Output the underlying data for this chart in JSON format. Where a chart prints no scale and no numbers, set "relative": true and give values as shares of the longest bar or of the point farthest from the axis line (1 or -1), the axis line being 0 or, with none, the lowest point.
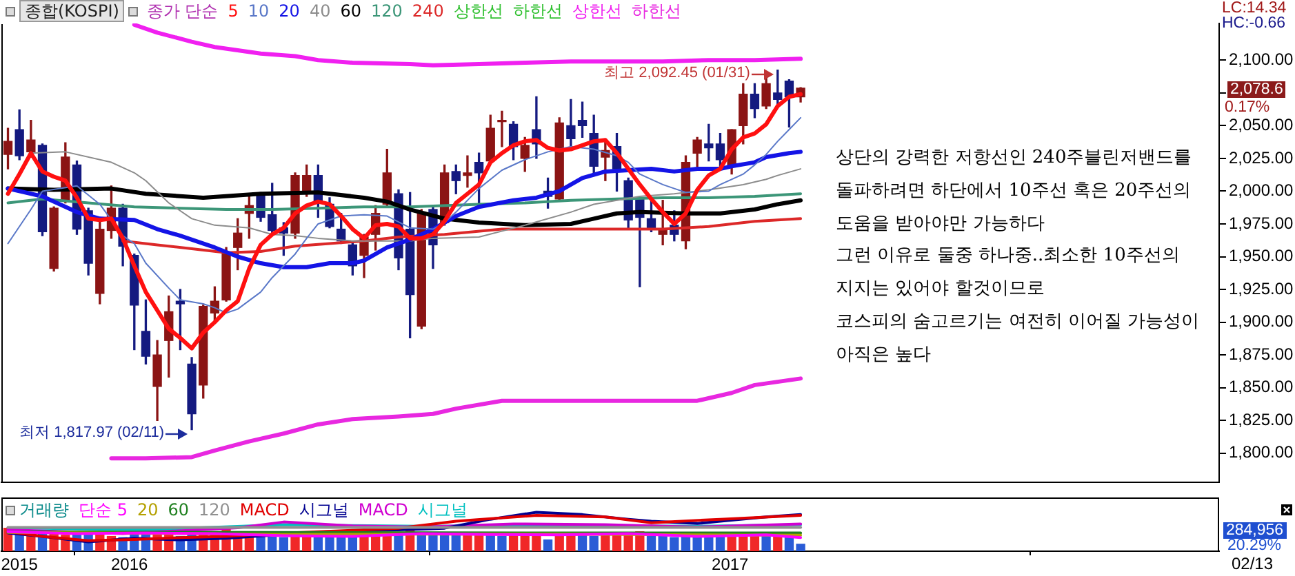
{
  "chart_data": [
    {
      "type": "candlestick",
      "title": "종합(KOSPI)",
      "legend_title": "종가 단순",
      "legend": "top left",
      "tick_labels": "y",
      "x": [
        "2015-10-19",
        "2015-10-26",
        "2015-11-02",
        "2015-11-09",
        "2015-11-16",
        "2015-11-23",
        "2015-11-30",
        "2015-12-07",
        "2015-12-14",
        "2015-12-21",
        "2015-12-28",
        "2016-01-04",
        "2016-01-11",
        "2016-01-18",
        "2016-01-25",
        "2016-02-01",
        "2016-02-08",
        "2016-02-15",
        "2016-02-22",
        "2016-02-29",
        "2016-03-07",
        "2016-03-14",
        "2016-03-21",
        "2016-03-28",
        "2016-04-04",
        "2016-04-11",
        "2016-04-18",
        "2016-04-25",
        "2016-05-02",
        "2016-05-09",
        "2016-05-16",
        "2016-05-23",
        "2016-05-30",
        "2016-06-06",
        "2016-06-13",
        "2016-06-20",
        "2016-06-27",
        "2016-07-04",
        "2016-07-11",
        "2016-07-18",
        "2016-07-25",
        "2016-08-01",
        "2016-08-08",
        "2016-08-15",
        "2016-08-22",
        "2016-08-29",
        "2016-09-05",
        "2016-09-12",
        "2016-09-19",
        "2016-09-26",
        "2016-10-03",
        "2016-10-10",
        "2016-10-17",
        "2016-10-24",
        "2016-10-31",
        "2016-11-07",
        "2016-11-14",
        "2016-11-21",
        "2016-11-28",
        "2016-12-05",
        "2016-12-12",
        "2016-12-19",
        "2016-12-26",
        "2017-01-02",
        "2017-01-09",
        "2017-01-16",
        "2017-01-23",
        "2017-01-30",
        "2017-02-06",
        "2017-02-13"
      ],
      "ohlc": [
        [
          2028,
          2048,
          2017,
          2038
        ],
        [
          2047,
          2062,
          2024,
          2027
        ],
        [
          2030,
          2054,
          2027,
          2039
        ],
        [
          2035,
          2036,
          1966,
          1969
        ],
        [
          1941,
          1988,
          1939,
          1987
        ],
        [
          1993,
          2037,
          1991,
          2026
        ],
        [
          2020,
          2023,
          1967,
          1971
        ],
        [
          1985,
          1987,
          1936,
          1945
        ],
        [
          1922,
          1979,
          1914,
          1971
        ],
        [
          1970,
          2004,
          1964,
          1987
        ],
        [
          1987,
          1990,
          1943,
          1958
        ],
        [
          1951,
          1952,
          1879,
          1913
        ],
        [
          1893,
          1917,
          1868,
          1874
        ],
        [
          1851,
          1886,
          1825,
          1875
        ],
        [
          1886,
          1920,
          1858,
          1908
        ],
        [
          1916,
          1925,
          1879,
          1914
        ],
        [
          1868,
          1873,
          1817.97,
          1830
        ],
        [
          1852,
          1913,
          1842,
          1912
        ],
        [
          1907,
          1927,
          1900,
          1916
        ],
        [
          1917,
          1957,
          1916,
          1953
        ],
        [
          1957,
          1979,
          1940,
          1968
        ],
        [
          1983,
          1998,
          1964,
          1989
        ],
        [
          1998,
          1999,
          1977,
          1980
        ],
        [
          1982,
          2006,
          1967,
          1970
        ],
        [
          1972,
          1976,
          1951,
          1968
        ],
        [
          1968,
          2014,
          1964,
          2012
        ],
        [
          1998,
          2020,
          1996,
          2012
        ],
        [
          2012,
          2020,
          1980,
          1991
        ],
        [
          1990,
          1995,
          1972,
          1973
        ],
        [
          1971,
          1983,
          1960,
          1962
        ],
        [
          1959,
          1961,
          1936,
          1943
        ],
        [
          1951,
          1967,
          1934,
          1965
        ],
        [
          1967,
          1989,
          1955,
          1983
        ],
        [
          1990,
          2032,
          1989,
          2014
        ],
        [
          1998,
          2001,
          1940,
          1949
        ],
        [
          1971,
          1999,
          1888,
          1921
        ],
        [
          1897,
          1986,
          1895,
          1984
        ],
        [
          1986,
          1988,
          1941,
          1959
        ],
        [
          1976,
          2020,
          1974,
          2014
        ],
        [
          2015,
          2020,
          1998,
          2008
        ],
        [
          2012,
          2027,
          2003,
          2014
        ],
        [
          2022,
          2029,
          1990,
          2014
        ],
        [
          2023,
          2058,
          2022,
          2048
        ],
        [
          2053,
          2061,
          2034,
          2054
        ],
        [
          2051,
          2053,
          2024,
          2034
        ],
        [
          2025,
          2041,
          2015,
          2035
        ],
        [
          2047,
          2072,
          2025,
          2036
        ],
        [
          2000,
          2010,
          1987,
          1996
        ],
        [
          1994,
          2056,
          1993,
          2052
        ],
        [
          2050,
          2070,
          2032,
          2040
        ],
        [
          2054,
          2068,
          2041,
          2050
        ],
        [
          2044,
          2058,
          2013,
          2019
        ],
        [
          2026,
          2039,
          2008,
          2031
        ],
        [
          2034,
          2044,
          2000,
          2017
        ],
        [
          2008,
          2010,
          1971,
          1978
        ],
        [
          1995,
          1995,
          1927,
          1980
        ],
        [
          1979,
          1993,
          1969,
          1971
        ],
        [
          1967,
          1993,
          1959,
          1971
        ],
        [
          1974,
          1985,
          1962,
          1967
        ],
        [
          1962,
          2027,
          1956,
          2022
        ],
        [
          2029,
          2041,
          2019,
          2039
        ],
        [
          2036,
          2051,
          2023,
          2033
        ],
        [
          2036,
          2044,
          2018,
          2024
        ],
        [
          2019,
          2047,
          2013,
          2047
        ],
        [
          2050,
          2082,
          2036,
          2074
        ],
        [
          2074,
          2082,
          2056,
          2063
        ],
        [
          2065,
          2088,
          2063,
          2082
        ],
        [
          2075,
          2092.45,
          2064,
          2070
        ],
        [
          2084,
          2085,
          2049,
          2072
        ],
        [
          2072,
          2079,
          2068,
          2078.6
        ]
      ],
      "colors": [
        "#8b1414",
        "#141a80",
        "#8b1414",
        "#141a80",
        "#8b1414",
        "#8b1414",
        "#141a80",
        "#141a80",
        "#8b1414",
        "#8b1414",
        "#141a80",
        "#141a80",
        "#141a80",
        "#8b1414",
        "#8b1414",
        "#141a80",
        "#141a80",
        "#8b1414",
        "#8b1414",
        "#8b1414",
        "#8b1414",
        "#8b1414",
        "#141a80",
        "#141a80",
        "#141a80",
        "#8b1414",
        "#8b1414",
        "#141a80",
        "#141a80",
        "#141a80",
        "#141a80",
        "#8b1414",
        "#8b1414",
        "#8b1414",
        "#141a80",
        "#141a80",
        "#8b1414",
        "#141a80",
        "#8b1414",
        "#141a80",
        "#8b1414",
        "#141a80",
        "#8b1414",
        "#8b1414",
        "#141a80",
        "#8b1414",
        "#141a80",
        "#141a80",
        "#8b1414",
        "#141a80",
        "#141a80",
        "#141a80",
        "#8b1414",
        "#141a80",
        "#141a80",
        "#141a80",
        "#141a80",
        "#8b1414",
        "#141a80",
        "#8b1414",
        "#8b1414",
        "#141a80",
        "#141a80",
        "#8b1414",
        "#8b1414",
        "#141a80",
        "#8b1414",
        "#141a80",
        "#141a80",
        "#8b1414"
      ],
      "series": [
        {
          "name": "5",
          "type": "line",
          "color": "#ff1010",
          "values": [
            1998,
            2013,
            2029,
            2015,
            2011,
            2008,
            1995,
            1979,
            1978,
            1979,
            1964,
            1943,
            1923,
            1909,
            1895,
            1888,
            1880,
            1892,
            1900,
            1909,
            1916,
            1941,
            1959,
            1967,
            1972,
            1983,
            1989,
            1992,
            1990,
            1981,
            1971,
            1964,
            1974,
            1975,
            1973,
            1964,
            1964,
            1967,
            1977,
            1991,
            1998,
            2005,
            2022,
            2029,
            2035,
            2038,
            2039,
            2033,
            2031,
            2032,
            2035,
            2038,
            2039,
            2029,
            2017,
            2005,
            1994,
            1984,
            1975,
            1983,
            2001,
            2012,
            2017,
            2032,
            2041,
            2044,
            2051,
            2065,
            2072,
            2074
          ]
        },
        {
          "name": "10",
          "type": "line",
          "color": "#5a78c8",
          "x": [
            "2015-10-19",
            "2015-11-02",
            "2015-11-09",
            "2015-11-30",
            "2015-12-14",
            "2015-12-28",
            "2016-01-04",
            "2016-01-11",
            "2016-01-25",
            "2016-02-01",
            "2016-02-15",
            "2016-02-22",
            "2016-02-29",
            "2016-03-07",
            "2016-03-21",
            "2016-03-28",
            "2016-04-11",
            "2016-04-18",
            "2016-04-25",
            "2016-05-09",
            "2016-05-23",
            "2016-06-06",
            "2016-06-20",
            "2016-07-04",
            "2016-07-11",
            "2016-07-18",
            "2016-08-01",
            "2016-08-15",
            "2016-08-29",
            "2016-09-05",
            "2016-09-12",
            "2016-09-26",
            "2016-10-10",
            "2016-10-24",
            "2016-10-31",
            "2016-11-07",
            "2016-11-21",
            "2016-11-28",
            "2016-12-05",
            "2016-12-19",
            "2016-12-26",
            "2017-01-09",
            "2017-01-16",
            "2017-01-23",
            "2017-01-30",
            "2017-02-06",
            "2017-02-13"
          ],
          "values": [
            1960,
            1986,
            2000,
            2004,
            1990,
            1966,
            1960,
            1945,
            1926,
            1917,
            1914,
            1911,
            1907,
            1910,
            1923,
            1934,
            1952,
            1964,
            1975,
            1981,
            1982,
            1981,
            1972,
            1971,
            1976,
            1984,
            2002,
            2016,
            2024,
            2027,
            2030,
            2034,
            2032,
            2027,
            2022,
            2013,
            2005,
            2002,
            1999,
            2000,
            2005,
            2013,
            2020,
            2028,
            2038,
            2047,
            2056
          ]
        },
        {
          "name": "20",
          "type": "line",
          "color": "#1414e6",
          "x": [
            "2015-10-19",
            "2015-11-09",
            "2015-11-30",
            "2015-12-14",
            "2016-01-04",
            "2016-01-18",
            "2016-02-01",
            "2016-02-22",
            "2016-03-07",
            "2016-03-21",
            "2016-04-04",
            "2016-04-18",
            "2016-05-02",
            "2016-05-16",
            "2016-05-23",
            "2016-06-06",
            "2016-06-20",
            "2016-07-04",
            "2016-07-18",
            "2016-08-01",
            "2016-08-22",
            "2016-09-05",
            "2016-09-19",
            "2016-09-26",
            "2016-10-03",
            "2016-10-17",
            "2016-10-31",
            "2016-11-14",
            "2016-11-28",
            "2016-12-12",
            "2016-12-26",
            "2017-01-02",
            "2017-01-16",
            "2017-01-23",
            "2017-02-06",
            "2017-02-13"
          ],
          "values": [
            2002,
            1996,
            1984,
            1979,
            1978,
            1971,
            1966,
            1957,
            1950,
            1945,
            1942,
            1942,
            1945,
            1945,
            1947,
            1957,
            1963,
            1971,
            1981,
            1988,
            1993,
            1995,
            2000,
            2005,
            2010,
            2015,
            2016,
            2017,
            2015,
            2017,
            2017,
            2019,
            2022,
            2026,
            2029,
            2030
          ]
        },
        {
          "name": "40",
          "type": "line",
          "color": "#8c8c8c",
          "x": [
            "2015-11-02",
            "2015-11-23",
            "2015-12-21",
            "2016-01-04",
            "2016-01-11",
            "2016-01-25",
            "2016-02-08",
            "2016-02-22",
            "2016-03-14",
            "2016-03-28",
            "2016-04-11",
            "2016-04-25",
            "2016-05-16",
            "2016-05-30",
            "2016-06-20",
            "2016-07-04",
            "2016-08-01",
            "2016-08-29",
            "2016-09-26",
            "2016-10-10",
            "2016-10-24",
            "2016-11-07",
            "2016-11-28",
            "2016-12-19",
            "2017-01-09",
            "2017-01-23",
            "2017-01-30",
            "2017-02-13"
          ],
          "values": [
            2029,
            2030,
            2022,
            2014,
            2008,
            1991,
            1979,
            1974,
            1972,
            1967,
            1966,
            1964,
            1962,
            1962,
            1962,
            1964,
            1965,
            1974,
            1984,
            1990,
            1993,
            1996,
            1998,
            2001,
            2005,
            2009,
            2012,
            2017
          ]
        },
        {
          "name": "60",
          "type": "line",
          "color": "#000000",
          "x": [
            "2015-10-19",
            "2015-11-16",
            "2015-12-21",
            "2016-01-11",
            "2016-02-15",
            "2016-03-21",
            "2016-04-25",
            "2016-05-23",
            "2016-06-06",
            "2016-06-20",
            "2016-07-11",
            "2016-08-01",
            "2016-08-29",
            "2016-09-26",
            "2016-10-10",
            "2016-10-24",
            "2016-11-07",
            "2016-12-05",
            "2016-12-26",
            "2017-01-16",
            "2017-01-30",
            "2017-02-13"
          ],
          "values": [
            2002,
            2001,
            2002,
            1998,
            1995,
            1998,
            1999,
            1995,
            1992,
            1986,
            1979,
            1976,
            1974,
            1975,
            1979,
            1983,
            1984,
            1983,
            1983,
            1986,
            1990,
            1993
          ]
        },
        {
          "name": "120",
          "type": "line",
          "color": "#3c9678",
          "x": [
            "2015-10-19",
            "2015-11-09",
            "2015-12-07",
            "2016-01-04",
            "2016-02-01",
            "2016-02-29",
            "2016-03-28",
            "2016-04-25",
            "2016-05-23",
            "2016-06-20",
            "2016-08-01",
            "2016-08-29",
            "2016-09-26",
            "2016-10-24",
            "2016-11-21",
            "2016-12-19",
            "2017-01-16",
            "2017-02-13"
          ],
          "values": [
            1991,
            1994,
            1991,
            1988,
            1987,
            1986,
            1986,
            1987,
            1988,
            1988,
            1990,
            1991,
            1993,
            1994,
            1995,
            1995,
            1996,
            1998
          ]
        },
        {
          "name": "240",
          "type": "line",
          "color": "#dc2828",
          "x": [
            "2015-12-28",
            "2016-01-18",
            "2016-02-08",
            "2016-02-29",
            "2016-03-21",
            "2016-04-11",
            "2016-05-02",
            "2016-05-23",
            "2016-06-13",
            "2016-07-11",
            "2016-08-15",
            "2016-09-26",
            "2016-10-24",
            "2016-11-21",
            "2016-12-19",
            "2017-01-16",
            "2017-02-13"
          ],
          "values": [
            1962,
            1959,
            1956,
            1953,
            1954,
            1958,
            1960,
            1962,
            1965,
            1967,
            1971,
            1971,
            1971,
            1971,
            1973,
            1977,
            1979
          ]
        },
        {
          "name": "상한선",
          "type": "line",
          "color": "#30c030",
          "values": [
            null,
            null,
            null,
            null,
            null,
            null,
            null,
            null,
            null,
            null,
            null,
            null,
            null,
            null,
            null,
            null,
            null,
            null,
            null,
            null,
            null,
            null,
            null,
            null,
            null,
            null,
            null,
            null,
            null,
            null,
            null,
            null,
            null,
            null,
            null,
            null,
            null,
            null,
            null,
            null,
            null,
            null,
            null,
            null,
            null,
            null,
            null,
            null,
            null,
            null,
            null,
            null,
            null,
            null,
            null,
            null,
            null,
            null,
            null,
            null,
            null,
            null,
            null,
            null,
            null,
            null,
            null,
            null,
            null,
            null
          ]
        },
        {
          "name": "하한선",
          "type": "line",
          "color": "#30c030",
          "values": [
            null,
            null,
            null,
            null,
            null,
            null,
            null,
            null,
            null,
            null,
            null,
            null,
            null,
            null,
            null,
            null,
            null,
            null,
            null,
            null,
            null,
            null,
            null,
            null,
            null,
            null,
            null,
            null,
            null,
            null,
            null,
            null,
            null,
            null,
            null,
            null,
            null,
            null,
            null,
            null,
            null,
            null,
            null,
            null,
            null,
            null,
            null,
            null,
            null,
            null,
            null,
            null,
            null,
            null,
            null,
            null,
            null,
            null,
            null,
            null,
            null,
            null,
            null,
            null,
            null,
            null,
            null,
            null,
            null,
            null
          ]
        },
        {
          "name": "상한선",
          "type": "line",
          "color": "#f020f0",
          "x": [
            "2016-01-04",
            "2016-01-18",
            "2016-02-08",
            "2016-02-22",
            "2016-03-21",
            "2016-04-11",
            "2016-04-25",
            "2016-05-16",
            "2016-06-20",
            "2016-07-04",
            "2016-08-01",
            "2016-08-29",
            "2016-09-26",
            "2016-10-24",
            "2016-11-21",
            "2016-12-19",
            "2017-01-16",
            "2017-02-13"
          ],
          "values": [
            2127,
            2121,
            2114,
            2110,
            2105,
            2103,
            2100,
            2098,
            2097,
            2096,
            2097,
            2098,
            2099,
            2099,
            2099,
            2100,
            2100,
            2101
          ]
        },
        {
          "name": "하한선",
          "type": "line",
          "color": "#e828e0",
          "x": [
            "2015-12-21",
            "2016-01-11",
            "2016-02-08",
            "2016-02-22",
            "2016-03-14",
            "2016-04-04",
            "2016-04-25",
            "2016-05-16",
            "2016-06-13",
            "2016-07-04",
            "2016-07-18",
            "2016-08-15",
            "2016-10-03",
            "2016-11-14",
            "2016-12-12",
            "2017-01-02",
            "2017-01-16",
            "2017-02-13"
          ],
          "values": [
            1796,
            1796,
            1797,
            1802,
            1809,
            1815,
            1822,
            1826,
            1828,
            1830,
            1834,
            1840,
            1840,
            1840,
            1840,
            1846,
            1852,
            1857
          ]
        }
      ],
      "xlim": [
        "2015-10-15",
        "2017-10-26"
      ],
      "ylim": [
        1778,
        2128
      ],
      "yticks": [
        {
          "value": 1800,
          "label": "1,800.00"
        },
        {
          "value": 1825,
          "label": "1,825.00"
        },
        {
          "value": 1850,
          "label": "1,850.00"
        },
        {
          "value": 1875,
          "label": "1,875.00"
        },
        {
          "value": 1900,
          "label": "1,900.00"
        },
        {
          "value": 1925,
          "label": "1,925.00"
        },
        {
          "value": 1950,
          "label": "1,950.00"
        },
        {
          "value": 1975,
          "label": "1,975.00"
        },
        {
          "value": 2000,
          "label": "2,000.00"
        },
        {
          "value": 2025,
          "label": "2,025.00"
        },
        {
          "value": 2050,
          "label": "2,050.00"
        },
        {
          "value": 2075,
          "label": null
        },
        {
          "value": 2100,
          "label": "2,100.00"
        }
      ],
      "annotations": [
        "LC:14.34",
        "HC:-0.66",
        "2,078.6",
        "0.17%",
        {
          "text": "최고 2,092.45 (01/31)",
          "x": "2017-01-30",
          "y": 2092.45
        },
        {
          "text": "최저 1,817.97 (02/11)",
          "x": "2016-02-08",
          "y": 1817.97
        },
        "상단의 강력한 저항선인 240주블린저밴드를\n돌파하려면 하단에서 10주선 혹은 20주선의\n도움을 받아야만 가능하다\n그런 이유로 둘중 하나중..최소한 10주선의\n지지는 있어야 할것이므로\n코스피의 숨고르기는 여전히 이어질 가능성이\n아직은 높다"
      ]
    },
    {
      "type": "bar",
      "title": "거래량",
      "relative": true,
      "legend": "top left",
      "tick_labels": "x",
      "x": [
        "2015-10-19",
        "2015-10-26",
        "2015-11-02",
        "2015-11-09",
        "2015-11-16",
        "2015-11-23",
        "2015-11-30",
        "2015-12-07",
        "2015-12-14",
        "2015-12-21",
        "2015-12-28",
        "2016-01-04",
        "2016-01-11",
        "2016-01-18",
        "2016-01-25",
        "2016-02-01",
        "2016-02-08",
        "2016-02-15",
        "2016-02-22",
        "2016-02-29",
        "2016-03-07",
        "2016-03-14",
        "2016-03-21",
        "2016-03-28",
        "2016-04-04",
        "2016-04-11",
        "2016-04-18",
        "2016-04-25",
        "2016-05-02",
        "2016-05-09",
        "2016-05-16",
        "2016-05-23",
        "2016-05-30",
        "2016-06-06",
        "2016-06-13",
        "2016-06-20",
        "2016-06-27",
        "2016-07-04",
        "2016-07-11",
        "2016-07-18",
        "2016-07-25",
        "2016-08-01",
        "2016-08-08",
        "2016-08-15",
        "2016-08-22",
        "2016-08-29",
        "2016-09-05",
        "2016-09-12",
        "2016-09-19",
        "2016-09-26",
        "2016-10-03",
        "2016-10-10",
        "2016-10-17",
        "2016-10-24",
        "2016-10-31",
        "2016-11-07",
        "2016-11-14",
        "2016-11-21",
        "2016-11-28",
        "2016-12-05",
        "2016-12-12",
        "2016-12-19",
        "2016-12-26",
        "2017-01-02",
        "2017-01-09",
        "2017-01-16",
        "2017-01-23",
        "2017-01-30",
        "2017-02-06",
        "2017-02-13"
      ],
      "series": [
        {
          "type": "bar",
          "colors": [
            "#f02828",
            "#2a5cd6",
            "#f02828",
            "#2a5cd6",
            "#f02828",
            "#f02828",
            "#2a5cd6",
            "#2a5cd6",
            "#f02828",
            "#f02828",
            "#2a5cd6",
            "#2a5cd6",
            "#2a5cd6",
            "#f02828",
            "#f02828",
            "#2a5cd6",
            "#2a5cd6",
            "#f02828",
            "#f02828",
            "#f02828",
            "#f02828",
            "#f02828",
            "#2a5cd6",
            "#2a5cd6",
            "#2a5cd6",
            "#f02828",
            "#f02828",
            "#2a5cd6",
            "#2a5cd6",
            "#2a5cd6",
            "#2a5cd6",
            "#f02828",
            "#f02828",
            "#f02828",
            "#2a5cd6",
            "#f02828",
            "#2a5cd6",
            "#2a5cd6",
            "#2a5cd6",
            "#2a5cd6",
            "#f02828",
            "#f02828",
            "#2a5cd6",
            "#2a5cd6",
            "#f02828",
            "#f02828",
            "#f02828",
            "#2a5cd6",
            "#f02828",
            "#f02828",
            "#2a5cd6",
            "#2a5cd6",
            "#f02828",
            "#f02828",
            "#f02828",
            "#f02828",
            "#2a5cd6",
            "#2a5cd6",
            "#2a5cd6",
            "#2a5cd6",
            "#2a5cd6",
            "#2a5cd6",
            "#2a5cd6",
            "#f02828",
            "#f02828",
            "#f02828",
            "#2a5cd6",
            "#f02828",
            "#2a5cd6",
            "#2a5cd6"
          ],
          "values": [
            0.59,
            0.47,
            0.44,
            0.47,
            0.44,
            0.41,
            0.44,
            0.47,
            0.44,
            0.38,
            0.35,
            0.47,
            0.5,
            0.47,
            0.44,
            0.38,
            0.5,
            0.47,
            0.44,
            0.58,
            0.44,
            0.41,
            0.38,
            0.41,
            0.35,
            0.44,
            0.47,
            0.41,
            0.38,
            0.35,
            0.38,
            0.38,
            0.41,
            0.44,
            0.47,
            0.53,
            0.44,
            0.47,
            0.44,
            0.41,
            0.44,
            0.47,
            0.41,
            0.38,
            0.44,
            0.47,
            0.44,
            0.29,
            0.47,
            0.44,
            0.41,
            0.38,
            0.44,
            0.44,
            0.47,
            0.5,
            0.38,
            0.38,
            0.35,
            0.38,
            0.35,
            0.35,
            0.38,
            0.44,
            0.47,
            0.44,
            0.38,
            0.44,
            0.38,
            0.18
          ]
        },
        {
          "name": "단순 5",
          "type": "line",
          "color": "#ff00ff",
          "x": [
            "2015-10-19",
            "2015-11-30",
            "2016-01-11",
            "2016-02-22",
            "2016-04-04",
            "2016-05-16",
            "2016-06-27",
            "2016-08-08",
            "2016-09-19",
            "2016-10-31",
            "2016-12-12",
            "2017-01-23",
            "2017-02-13"
          ],
          "values": [
            0.5,
            0.45,
            0.47,
            0.45,
            0.4,
            0.38,
            0.45,
            0.43,
            0.42,
            0.45,
            0.38,
            0.42,
            0.35
          ]
        },
        {
          "name": "20",
          "type": "line",
          "color": "#b4a000",
          "x": [
            "2015-10-19",
            "2016-01-11",
            "2016-04-04",
            "2016-06-27",
            "2016-09-19",
            "2016-12-12",
            "2017-02-13"
          ],
          "values": [
            0.48,
            0.46,
            0.43,
            0.44,
            0.44,
            0.42,
            0.41
          ]
        },
        {
          "name": "60",
          "type": "line",
          "color": "#208020",
          "x": [
            "2015-10-19",
            "2016-03-28",
            "2016-09-05",
            "2017-02-13"
          ],
          "values": [
            0.5,
            0.48,
            0.47,
            0.47
          ]
        },
        {
          "name": "120",
          "type": "line",
          "color": "#909090",
          "x": [
            "2015-10-19",
            "2017-02-13"
          ],
          "values": [
            0.61,
            0.61
          ]
        },
        {
          "name": "MACD",
          "type": "line",
          "color": "#e00000",
          "x": [
            "2015-10-19",
            "2015-11-09",
            "2015-12-07",
            "2016-01-04",
            "2016-02-01",
            "2016-02-29",
            "2016-03-28",
            "2016-04-25",
            "2016-05-23",
            "2016-06-13",
            "2016-07-18",
            "2016-09-05",
            "2016-10-17",
            "2016-11-14",
            "2016-12-26",
            "2017-02-13"
          ],
          "values": [
            0.5,
            0.38,
            0.27,
            0.3,
            0.35,
            0.38,
            0.45,
            0.5,
            0.55,
            0.59,
            0.77,
            0.92,
            0.88,
            0.73,
            0.82,
            0.92
          ]
        },
        {
          "name": "시그널",
          "type": "line",
          "color": "#000090",
          "x": [
            "2015-10-19",
            "2015-11-09",
            "2015-12-07",
            "2016-01-04",
            "2016-02-01",
            "2016-02-29",
            "2016-03-28",
            "2016-04-25",
            "2016-05-23",
            "2016-06-13",
            "2016-07-11",
            "2016-08-08",
            "2016-09-05",
            "2016-10-03",
            "2016-10-31",
            "2016-11-14",
            "2016-12-12",
            "2016-12-26",
            "2017-01-23",
            "2017-02-13"
          ],
          "values": [
            0.47,
            0.38,
            0.24,
            0.33,
            0.29,
            0.33,
            0.41,
            0.49,
            0.53,
            0.55,
            0.59,
            0.82,
            1,
            0.94,
            0.82,
            0.77,
            0.71,
            0.77,
            0.88,
            0.94
          ]
        },
        {
          "name": "MACD",
          "type": "line",
          "color": "#d000d0",
          "x": [
            "2015-10-19",
            "2015-12-28",
            "2016-03-07",
            "2016-04-04",
            "2016-05-16",
            "2016-06-27",
            "2016-08-22",
            "2016-10-17",
            "2016-12-12",
            "2017-02-13"
          ],
          "values": [
            0.55,
            0.45,
            0.6,
            0.75,
            0.65,
            0.62,
            0.7,
            0.68,
            0.62,
            0.7
          ]
        },
        {
          "name": "시그널",
          "type": "line",
          "color": "#00c0c0",
          "x": [
            "2015-10-19",
            "2016-01-11",
            "2016-04-04",
            "2016-06-27",
            "2016-09-19",
            "2016-12-12",
            "2017-02-13"
          ],
          "values": [
            0.6,
            0.55,
            0.68,
            0.64,
            0.66,
            0.64,
            0.68
          ]
        }
      ],
      "xlim": [
        "2015-10-15",
        "2017-10-26"
      ],
      "xticks": [
        {
          "value": "2015-10-26",
          "label": "2015"
        },
        {
          "value": "2016-01-01",
          "label": "2016"
        },
        {
          "value": "2017-01-01",
          "label": "2017"
        }
      ],
      "annotations": [
        "284,956",
        "20.29%",
        "02/13"
      ]
    }
  ]
}
